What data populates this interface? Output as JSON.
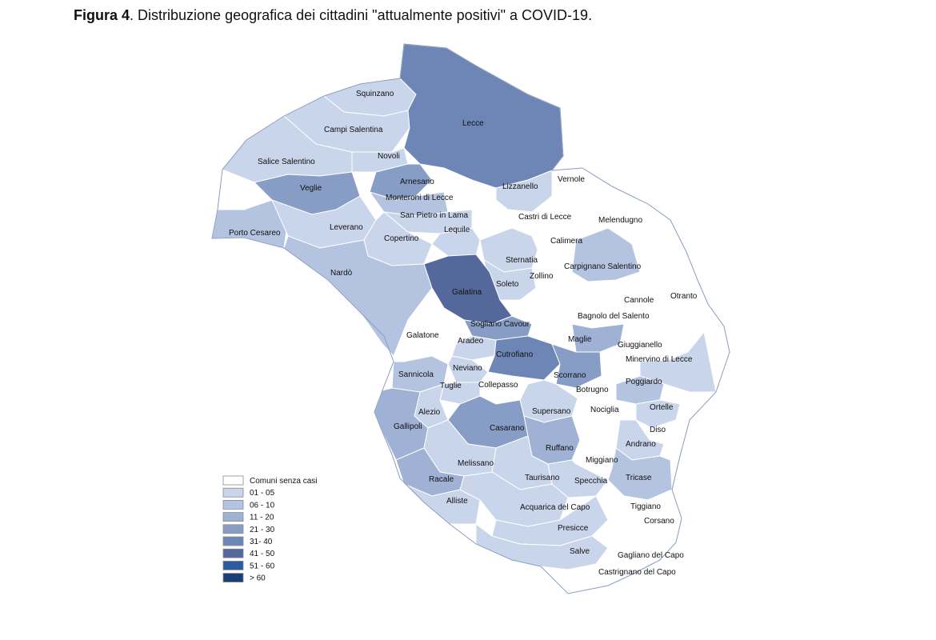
{
  "figure": {
    "label": "Figura 4",
    "title": ". Distribuzione  geografica dei cittadini \"attualmente positivi\" a COVID-19."
  },
  "legend": [
    {
      "label": "Comuni senza casi",
      "color": "#ffffff"
    },
    {
      "label": "01 - 05",
      "color": "#c9d5ea"
    },
    {
      "label": "06 - 10",
      "color": "#b4c4e0"
    },
    {
      "label": "11 - 20",
      "color": "#9fb1d4"
    },
    {
      "label": "21 - 30",
      "color": "#879dc5"
    },
    {
      "label": "31- 40",
      "color": "#6e86b5"
    },
    {
      "label": "41 - 50",
      "color": "#54689b"
    },
    {
      "label": "51 - 60",
      "color": "#2d5a9e"
    },
    {
      "label": "> 60",
      "color": "#1a3f78"
    }
  ],
  "municipalities": [
    {
      "name": "Squinzano",
      "class": 1
    },
    {
      "name": "Campi Salentina",
      "class": 1
    },
    {
      "name": "Lecce",
      "class": 5
    },
    {
      "name": "Salice Salentino",
      "class": 1
    },
    {
      "name": "Novoli",
      "class": 1
    },
    {
      "name": "Veglie",
      "class": 4
    },
    {
      "name": "Arnesano",
      "class": 4
    },
    {
      "name": "Monteroni di Lecce",
      "class": 2
    },
    {
      "name": "Lizzanello",
      "class": 1
    },
    {
      "name": "Vernole",
      "class": 0
    },
    {
      "name": "San Pietro in Lama",
      "class": 1
    },
    {
      "name": "Castri di Lecce",
      "class": 0
    },
    {
      "name": "Melendugno",
      "class": 0
    },
    {
      "name": "Porto Cesareo",
      "class": 2
    },
    {
      "name": "Leverano",
      "class": 1
    },
    {
      "name": "Lequile",
      "class": 1
    },
    {
      "name": "Copertino",
      "class": 1
    },
    {
      "name": "Calimera",
      "class": 0
    },
    {
      "name": "Sternatia",
      "class": 1
    },
    {
      "name": "Carpignano Salentino",
      "class": 2
    },
    {
      "name": "Nardò",
      "class": 2
    },
    {
      "name": "Soleto",
      "class": 1
    },
    {
      "name": "Zollino",
      "class": 0
    },
    {
      "name": "Galatina",
      "class": 6
    },
    {
      "name": "Cannole",
      "class": 0
    },
    {
      "name": "Otranto",
      "class": 0
    },
    {
      "name": "Bagnolo del Salento",
      "class": 0
    },
    {
      "name": "Sogliano Cavour",
      "class": 4
    },
    {
      "name": "Galatone",
      "class": 0
    },
    {
      "name": "Aradeo",
      "class": 1
    },
    {
      "name": "Maglie",
      "class": 3
    },
    {
      "name": "Giuggianello",
      "class": 0
    },
    {
      "name": "Cutrofiano",
      "class": 5
    },
    {
      "name": "Minervino di Lecce",
      "class": 1
    },
    {
      "name": "Sannicola",
      "class": 2
    },
    {
      "name": "Neviano",
      "class": 1
    },
    {
      "name": "Scorrano",
      "class": 4
    },
    {
      "name": "Tuglie",
      "class": 1
    },
    {
      "name": "Collepasso",
      "class": 0
    },
    {
      "name": "Botrugno",
      "class": 0
    },
    {
      "name": "Poggiardo",
      "class": 2
    },
    {
      "name": "Alezio",
      "class": 1
    },
    {
      "name": "Supersano",
      "class": 1
    },
    {
      "name": "Nociglia",
      "class": 0
    },
    {
      "name": "Ortelle",
      "class": 1
    },
    {
      "name": "Gallipoli",
      "class": 3
    },
    {
      "name": "Casarano",
      "class": 4
    },
    {
      "name": "Diso",
      "class": 0
    },
    {
      "name": "Andrano",
      "class": 1
    },
    {
      "name": "Ruffano",
      "class": 3
    },
    {
      "name": "Melissano",
      "class": 1
    },
    {
      "name": "Miggiano",
      "class": 0
    },
    {
      "name": "Racale",
      "class": 3
    },
    {
      "name": "Taurisano",
      "class": 1
    },
    {
      "name": "Specchia",
      "class": 1
    },
    {
      "name": "Tricase",
      "class": 2
    },
    {
      "name": "Alliste",
      "class": 1
    },
    {
      "name": "Acquarica del Capo",
      "class": 1
    },
    {
      "name": "Tiggiano",
      "class": 0
    },
    {
      "name": "Corsano",
      "class": 0
    },
    {
      "name": "Presicce",
      "class": 1
    },
    {
      "name": "Salve",
      "class": 1
    },
    {
      "name": "Gagliano del Capo",
      "class": 0
    },
    {
      "name": "Castrignano del Capo",
      "class": 0
    }
  ]
}
